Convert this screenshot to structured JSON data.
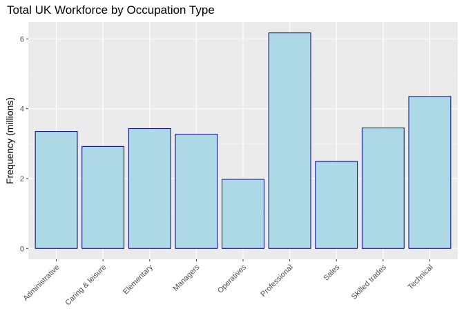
{
  "chart_data": {
    "type": "bar",
    "title": "Total UK Workforce by Occupation Type",
    "xlabel": "",
    "ylabel": "Frequency (millions)",
    "categories": [
      "Administrative",
      "Caring & leisure",
      "Elementary",
      "Managers",
      "Operatives",
      "Professional",
      "Sales",
      "Skilled trades",
      "Technical"
    ],
    "values": [
      3.35,
      2.92,
      3.43,
      3.27,
      1.98,
      6.17,
      2.49,
      3.45,
      4.35
    ],
    "ylim": [
      -0.31,
      6.48
    ],
    "yticks": [
      0,
      2,
      4,
      6
    ],
    "grid": true,
    "legend": "none",
    "colors": {
      "bar_fill": "#add8e6",
      "bar_stroke": "#00008b",
      "panel": "#ebebeb",
      "grid_major": "#ffffff",
      "grid_minor": "#f5f5f5"
    }
  }
}
